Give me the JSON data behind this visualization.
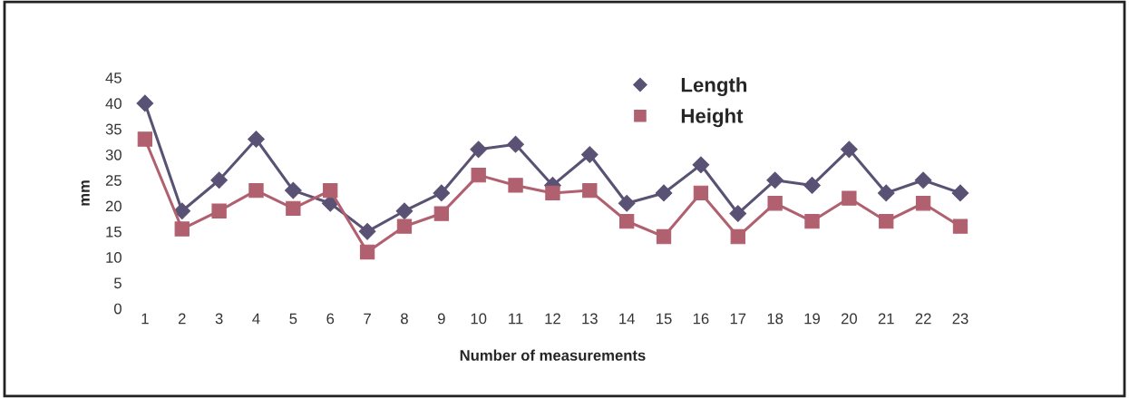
{
  "chart_data": {
    "type": "line",
    "xlabel": "Number of measurements",
    "ylabel": "mm",
    "categories": [
      "1",
      "2",
      "3",
      "4",
      "5",
      "6",
      "7",
      "8",
      "9",
      "10",
      "11",
      "12",
      "13",
      "14",
      "15",
      "16",
      "17",
      "18",
      "19",
      "20",
      "21",
      "22",
      "23"
    ],
    "series": [
      {
        "name": "Length",
        "color": "#5a5275",
        "marker": "diamond",
        "values": [
          40,
          19,
          25,
          33,
          23,
          20.5,
          15,
          19,
          22.5,
          31,
          32,
          24,
          30,
          20.5,
          22.5,
          28,
          18.5,
          25,
          24,
          31,
          22.5,
          25,
          22.5
        ]
      },
      {
        "name": "Height",
        "color": "#b0606e",
        "marker": "square",
        "values": [
          33,
          15.5,
          19,
          23,
          19.5,
          23,
          11,
          16,
          18.5,
          26,
          24,
          22.5,
          23,
          17,
          14,
          22.5,
          14,
          20.5,
          17,
          21.5,
          17,
          20.5,
          16
        ]
      }
    ],
    "ylim": [
      0,
      45
    ],
    "yticks": [
      0,
      5,
      10,
      15,
      20,
      25,
      30,
      35,
      40,
      45
    ],
    "grid": false,
    "legend": "top right",
    "line_style": "solid"
  }
}
